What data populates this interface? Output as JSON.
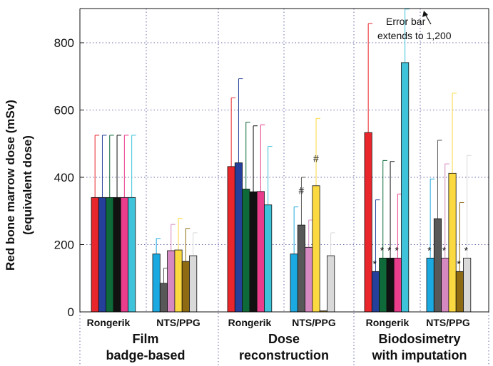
{
  "chart_data": {
    "type": "bar",
    "ylabel_line1": "Red bone marrow dose (mSv)",
    "ylabel_line2": "(equivalent dose)",
    "ylim": [
      0,
      900
    ],
    "yticks": [
      "0",
      "200",
      "400",
      "600",
      "800"
    ],
    "grid": true,
    "groups": [
      {
        "label_line1": "Film",
        "label_line2": "badge-based",
        "subgroups": [
          {
            "label": "Rongerik",
            "bars": [
              {
                "value": 340,
                "err": 525,
                "color": "#e8262b"
              },
              {
                "value": 340,
                "err": 525,
                "color": "#24409a"
              },
              {
                "value": 340,
                "err": 525,
                "color": "#0e6b39"
              },
              {
                "value": 340,
                "err": 525,
                "color": "#111111"
              },
              {
                "value": 340,
                "err": 525,
                "color": "#ea3d8c"
              },
              {
                "value": 340,
                "err": 525,
                "color": "#3ec3da"
              }
            ]
          },
          {
            "label": "NTS/PPG",
            "bars": [
              {
                "value": 172,
                "err": 218,
                "color": "#1ba9e1"
              },
              {
                "value": 85,
                "err": 130,
                "color": "#585858"
              },
              {
                "value": 182,
                "err": 260,
                "color": "#d589c0"
              },
              {
                "value": 184,
                "err": 278,
                "color": "#fbd940"
              },
              {
                "value": 150,
                "err": 248,
                "color": "#8e6b12"
              },
              {
                "value": 167,
                "err": 235,
                "color": "#d9d9d9"
              }
            ]
          }
        ]
      },
      {
        "label_line1": "Dose",
        "label_line2": "reconstruction",
        "subgroups": [
          {
            "label": "Rongerik",
            "bars": [
              {
                "value": 432,
                "err": 636,
                "color": "#e8262b"
              },
              {
                "value": 443,
                "err": 693,
                "color": "#24409a"
              },
              {
                "value": 365,
                "err": 564,
                "color": "#0e6b39"
              },
              {
                "value": 357,
                "err": 553,
                "color": "#111111"
              },
              {
                "value": 358,
                "err": 556,
                "color": "#ea3d8c"
              },
              {
                "value": 318,
                "err": 492,
                "color": "#3ec3da"
              }
            ]
          },
          {
            "label": "NTS/PPG",
            "bars": [
              {
                "value": 172,
                "err": 312,
                "color": "#1ba9e1"
              },
              {
                "value": 258,
                "err": 400,
                "color": "#585858",
                "mark": "#"
              },
              {
                "value": 192,
                "err": 273,
                "color": "#d589c0"
              },
              {
                "value": 375,
                "err": 575,
                "color": "#fbd940",
                "mark": "#"
              },
              {
                "value": 3,
                "err": 0,
                "color": "#8e6b12"
              },
              {
                "value": 167,
                "err": 235,
                "color": "#d9d9d9"
              }
            ]
          }
        ]
      },
      {
        "label_line1": "Biodosimetry",
        "label_line2": "with imputation",
        "subgroups": [
          {
            "label": "Rongerik",
            "bars": [
              {
                "value": 533,
                "err": 857,
                "color": "#e8262b"
              },
              {
                "value": 120,
                "err": 333,
                "color": "#24409a",
                "mark": "*"
              },
              {
                "value": 160,
                "err": 450,
                "color": "#0e6b39",
                "mark": "*"
              },
              {
                "value": 160,
                "err": 447,
                "color": "#111111",
                "mark": "*"
              },
              {
                "value": 160,
                "err": 350,
                "color": "#ea3d8c",
                "mark": "*"
              },
              {
                "value": 741,
                "err": 900,
                "color": "#3ec3da"
              }
            ]
          },
          {
            "label": "NTS/PPG",
            "bars": [
              {
                "value": 160,
                "err": 395,
                "color": "#1ba9e1",
                "mark": "*"
              },
              {
                "value": 277,
                "err": 510,
                "color": "#585858"
              },
              {
                "value": 160,
                "err": 440,
                "color": "#d589c0",
                "mark": "*"
              },
              {
                "value": 412,
                "err": 650,
                "color": "#fbd940"
              },
              {
                "value": 120,
                "err": 325,
                "color": "#8e6b12",
                "mark": "*"
              },
              {
                "value": 160,
                "err": 465,
                "color": "#d9d9d9",
                "mark": "*"
              }
            ]
          }
        ]
      }
    ],
    "annotation_line1": "Error bar",
    "annotation_line2": "extends to 1,200"
  }
}
